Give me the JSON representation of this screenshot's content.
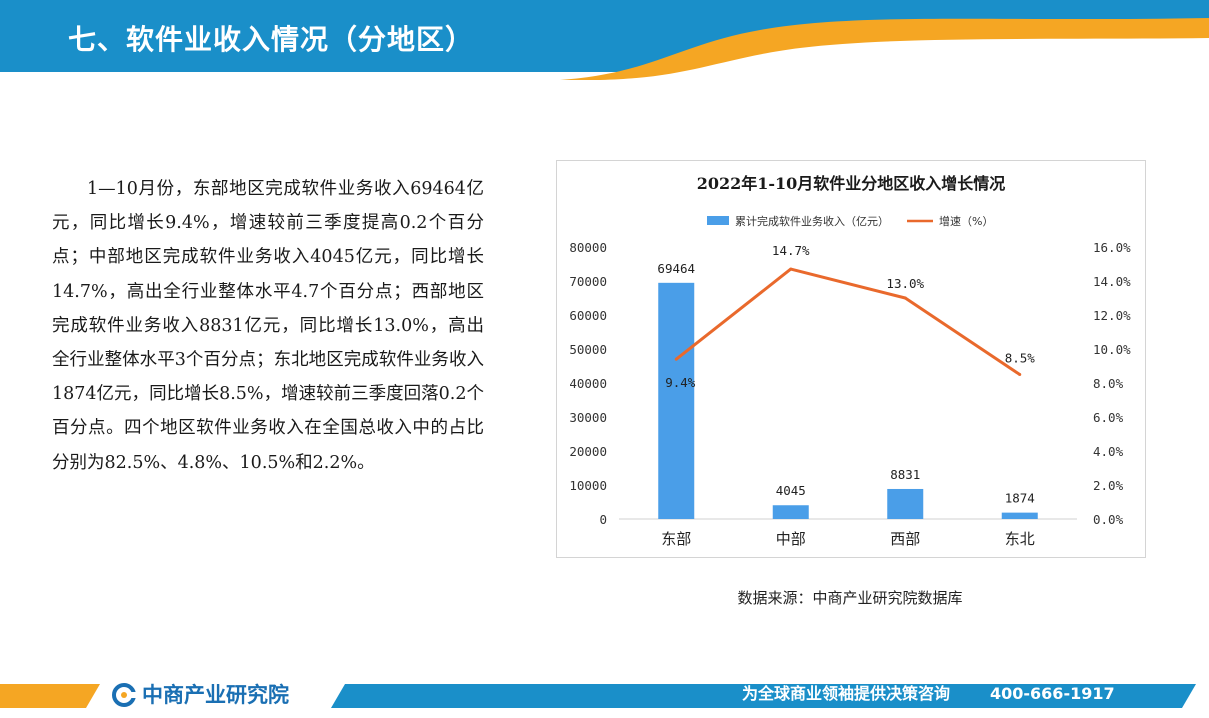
{
  "header": {
    "title": "七、软件业收入情况（分地区）"
  },
  "body": {
    "paragraph": "1—10月份，东部地区完成软件业务收入69464亿元，同比增长9.4%，增速较前三季度提高0.2个百分点；中部地区完成软件业务收入4045亿元，同比增长14.7%，高出全行业整体水平4.7个百分点；西部地区完成软件业务收入8831亿元，同比增长13.0%，高出全行业整体水平3个百分点；东北地区完成软件业务收入1874亿元，同比增长8.5%，增速较前三季度回落0.2个百分点。四个地区软件业务收入在全国总收入中的占比分别为82.5%、4.8%、10.5%和2.2%。"
  },
  "chart_data": {
    "type": "bar",
    "title": "2022年1-10月软件业分地区收入增长情况",
    "categories": [
      "东部",
      "中部",
      "西部",
      "东北"
    ],
    "series": [
      {
        "name": "累计完成软件业务收入（亿元）",
        "type": "bar",
        "axis": "left",
        "values": [
          69464,
          4045,
          8831,
          1874
        ],
        "labels": [
          "69464",
          "4045",
          "8831",
          "1874"
        ]
      },
      {
        "name": "增速（%）",
        "type": "line",
        "axis": "right",
        "values": [
          9.4,
          14.7,
          13.0,
          8.5
        ],
        "labels": [
          "9.4%",
          "14.7%",
          "13.0%",
          "8.5%"
        ]
      }
    ],
    "ylim": [
      0,
      80000
    ],
    "y_ticks": [
      "0",
      "10000",
      "20000",
      "30000",
      "40000",
      "50000",
      "60000",
      "70000",
      "80000"
    ],
    "y2lim": [
      0,
      16
    ],
    "y2_ticks": [
      "0.0%",
      "2.0%",
      "4.0%",
      "6.0%",
      "8.0%",
      "10.0%",
      "12.0%",
      "14.0%",
      "16.0%"
    ],
    "grid": false,
    "legend_position": "top",
    "colors": {
      "bar": "#4a9ee8",
      "line": "#e9692c"
    }
  },
  "source": {
    "text": "数据来源：中商产业研究院数据库"
  },
  "footer": {
    "brand": "中商产业研究院",
    "slogan": "为全球商业领袖提供决策咨询",
    "phone": "400-666-1917"
  },
  "colors": {
    "header_blue": "#1a8fc9",
    "accent_orange": "#f5a623",
    "brand_blue": "#1a6fb3"
  }
}
